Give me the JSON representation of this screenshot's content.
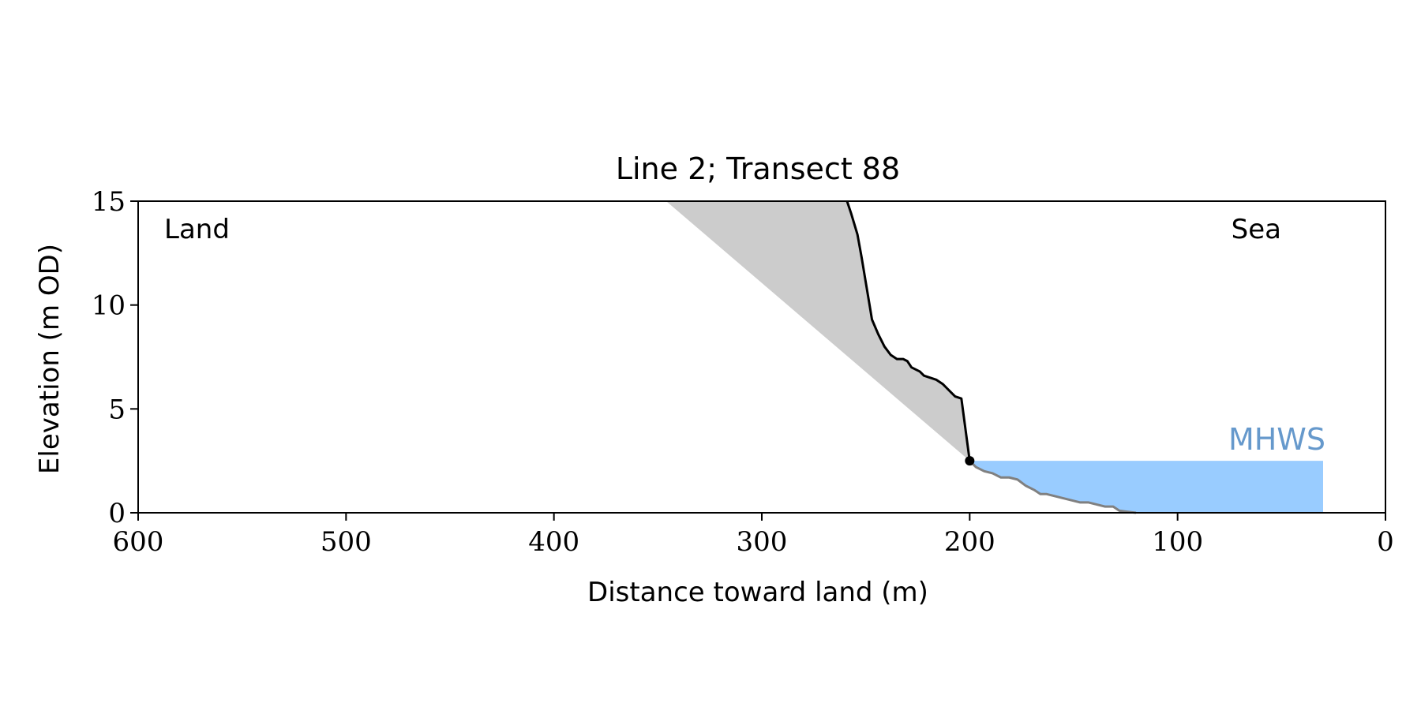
{
  "chart_data": {
    "type": "line",
    "title": "Line 2; Transect 88",
    "xlabel": "Distance toward land (m)",
    "ylabel": "Elevation (m OD)",
    "xlim": [
      600,
      0
    ],
    "ylim": [
      0,
      15
    ],
    "x_ticks": [
      600,
      500,
      400,
      300,
      200,
      100,
      0
    ],
    "y_ticks": [
      0,
      5,
      10,
      15
    ],
    "grid": false,
    "annotations": {
      "land": "Land",
      "sea": "Sea",
      "mhws": "MHWS"
    },
    "mhws": {
      "level": 2.5,
      "x_start": 200,
      "x_end": 30
    },
    "toe_point": {
      "x": 200,
      "y": 2.5
    },
    "colors": {
      "cliff_line": "#000000",
      "beach_line": "#808080",
      "shaded_area": "#cccccc",
      "mhws_fill": "#99ccff",
      "mhws_text": "#6699cc"
    },
    "series": [
      {
        "name": "",
        "role": "cliff",
        "x": [
          259,
          257,
          254,
          252,
          250,
          247,
          244,
          241,
          238,
          235,
          232,
          230,
          228,
          226,
          224,
          222,
          219,
          216,
          213,
          211,
          209,
          207,
          204,
          200
        ],
        "y": [
          15,
          14.4,
          13.4,
          12.3,
          11.1,
          9.3,
          8.6,
          8.0,
          7.6,
          7.4,
          7.4,
          7.3,
          7.0,
          6.9,
          6.8,
          6.6,
          6.5,
          6.4,
          6.2,
          6.0,
          5.8,
          5.6,
          5.5,
          2.5
        ]
      },
      {
        "name": "",
        "role": "beach",
        "x": [
          200,
          197,
          193,
          189,
          185,
          181,
          177,
          173,
          169,
          166,
          163,
          159,
          155,
          151,
          147,
          143,
          139,
          135,
          131,
          128,
          124,
          120
        ],
        "y": [
          2.5,
          2.2,
          2.0,
          1.9,
          1.7,
          1.7,
          1.6,
          1.3,
          1.1,
          0.9,
          0.9,
          0.8,
          0.7,
          0.6,
          0.5,
          0.5,
          0.4,
          0.3,
          0.3,
          0.1,
          0.05,
          0.0
        ]
      },
      {
        "name": "",
        "role": "projection",
        "x": [
          346,
          200
        ],
        "y": [
          15,
          2.5
        ]
      }
    ]
  }
}
